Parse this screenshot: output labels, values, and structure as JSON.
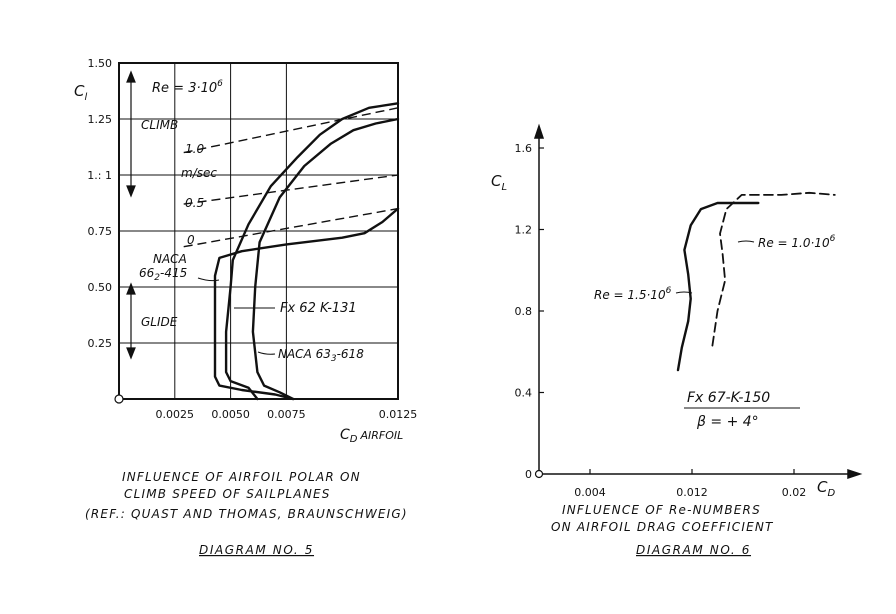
{
  "chart_data": [
    {
      "type": "line",
      "ylabel": "C",
      "ylabel_sub": "l",
      "xlabel": "C",
      "xlabel_sub": "D",
      "xlabel_suffix": "AIRFOIL",
      "x_tick_labels": [
        "0.0025",
        "0.0050",
        "0.0075",
        "0.0125"
      ],
      "x_ticks": [
        0.0025,
        0.005,
        0.0075,
        0.0125
      ],
      "y_tick_labels": [
        "0.25",
        "0.50",
        "0.75",
        "1.: 1",
        "1.25",
        "1.50"
      ],
      "y_ticks": [
        0.25,
        0.5,
        0.75,
        1.0,
        1.25,
        1.5
      ],
      "xlim": [
        0,
        0.0125
      ],
      "ylim": [
        0,
        1.5
      ],
      "grid": true,
      "reynolds_label": "Re = 3·10",
      "reynolds_exp": "6",
      "climb_label": "CLIMB",
      "glide_label": "GLIDE",
      "climb_rate_labels": [
        "1.0",
        "m/sec",
        "0.5",
        "0"
      ],
      "series": [
        {
          "name": "NACA 66₂-415",
          "name_main": "NACA",
          "name_line2": "66",
          "name_sub": "2",
          "name_suffix": "-415",
          "style": "solid",
          "points": [
            [
              0.0078,
              0.0
            ],
            [
              0.007,
              0.02
            ],
            [
              0.0055,
              0.04
            ],
            [
              0.0045,
              0.06
            ],
            [
              0.0043,
              0.1
            ],
            [
              0.0043,
              0.3
            ],
            [
              0.0043,
              0.55
            ],
            [
              0.0045,
              0.63
            ],
            [
              0.0055,
              0.66
            ],
            [
              0.0075,
              0.69
            ],
            [
              0.01,
              0.72
            ],
            [
              0.011,
              0.74
            ],
            [
              0.0118,
              0.79
            ],
            [
              0.0125,
              0.85
            ]
          ]
        },
        {
          "name": "Fx 62 K-131",
          "style": "solid",
          "points": [
            [
              0.0062,
              0.0
            ],
            [
              0.0058,
              0.05
            ],
            [
              0.005,
              0.08
            ],
            [
              0.0048,
              0.12
            ],
            [
              0.0048,
              0.3
            ],
            [
              0.005,
              0.5
            ],
            [
              0.0051,
              0.62
            ],
            [
              0.0058,
              0.78
            ],
            [
              0.0068,
              0.95
            ],
            [
              0.008,
              1.08
            ],
            [
              0.009,
              1.18
            ],
            [
              0.01,
              1.25
            ],
            [
              0.0112,
              1.3
            ],
            [
              0.0125,
              1.32
            ]
          ]
        },
        {
          "name": "NACA 63₃-618",
          "name_main": "NACA 63",
          "name_sub": "3",
          "name_suffix": "-618",
          "style": "solid",
          "points": [
            [
              0.0078,
              0.0
            ],
            [
              0.0072,
              0.03
            ],
            [
              0.0065,
              0.06
            ],
            [
              0.0062,
              0.12
            ],
            [
              0.006,
              0.3
            ],
            [
              0.0061,
              0.5
            ],
            [
              0.0063,
              0.7
            ],
            [
              0.0072,
              0.9
            ],
            [
              0.0083,
              1.04
            ],
            [
              0.0095,
              1.14
            ],
            [
              0.0105,
              1.2
            ],
            [
              0.0115,
              1.23
            ],
            [
              0.0125,
              1.25
            ]
          ]
        }
      ],
      "annotation_lines": [
        {
          "name": "1.0 m/sec",
          "points": [
            [
              0.0029,
              1.1
            ],
            [
              0.0125,
              1.3
            ]
          ]
        },
        {
          "name": "0.5",
          "points": [
            [
              0.0029,
              0.87
            ],
            [
              0.0125,
              1.0
            ]
          ]
        },
        {
          "name": "0",
          "points": [
            [
              0.0029,
              0.68
            ],
            [
              0.0125,
              0.85
            ]
          ]
        }
      ],
      "caption": [
        "INFLUENCE OF AIRFOIL POLAR ON",
        "CLIMB SPEED OF SAILPLANES",
        "(REF.: QUAST AND THOMAS, BRAUNSCHWEIG)"
      ],
      "diagram_label": "DIAGRAM NO. 5"
    },
    {
      "type": "line",
      "ylabel": "C",
      "ylabel_sub": "L",
      "xlabel": "C",
      "xlabel_sub": "D",
      "x_tick_labels": [
        "0.004",
        "0.012",
        "0.02"
      ],
      "x_ticks": [
        0.004,
        0.012,
        0.02
      ],
      "y_tick_labels": [
        "0",
        "0.4",
        "0.8",
        "1.2",
        "1.6"
      ],
      "y_ticks": [
        0,
        0.4,
        0.8,
        1.2,
        1.6
      ],
      "xlim": [
        0,
        0.024
      ],
      "ylim": [
        0,
        1.7
      ],
      "grid": false,
      "series": [
        {
          "name": "Re = 1.5·10",
          "name_exp": "6",
          "style": "solid",
          "points": [
            [
              0.0109,
              0.51
            ],
            [
              0.0112,
              0.62
            ],
            [
              0.0117,
              0.75
            ],
            [
              0.0119,
              0.86
            ],
            [
              0.0117,
              0.98
            ],
            [
              0.0114,
              1.1
            ],
            [
              0.0119,
              1.22
            ],
            [
              0.0127,
              1.3
            ],
            [
              0.014,
              1.33
            ],
            [
              0.016,
              1.33
            ],
            [
              0.0172,
              1.33
            ]
          ]
        },
        {
          "name": "Re = 1.0·10",
          "name_exp": "6",
          "style": "dashed",
          "points": [
            [
              0.0136,
              0.63
            ],
            [
              0.014,
              0.8
            ],
            [
              0.0146,
              0.95
            ],
            [
              0.0144,
              1.08
            ],
            [
              0.0142,
              1.18
            ],
            [
              0.0147,
              1.3
            ],
            [
              0.0159,
              1.37
            ],
            [
              0.019,
              1.37
            ],
            [
              0.0212,
              1.38
            ],
            [
              0.0232,
              1.37
            ]
          ]
        }
      ],
      "airfoil_label": "Fx 67-K-150",
      "beta_label": "β = + 4°",
      "caption": [
        "INFLUENCE OF Re-NUMBERS",
        "ON AIRFOIL DRAG COEFFICIENT"
      ],
      "diagram_label": "DIAGRAM NO. 6"
    }
  ]
}
